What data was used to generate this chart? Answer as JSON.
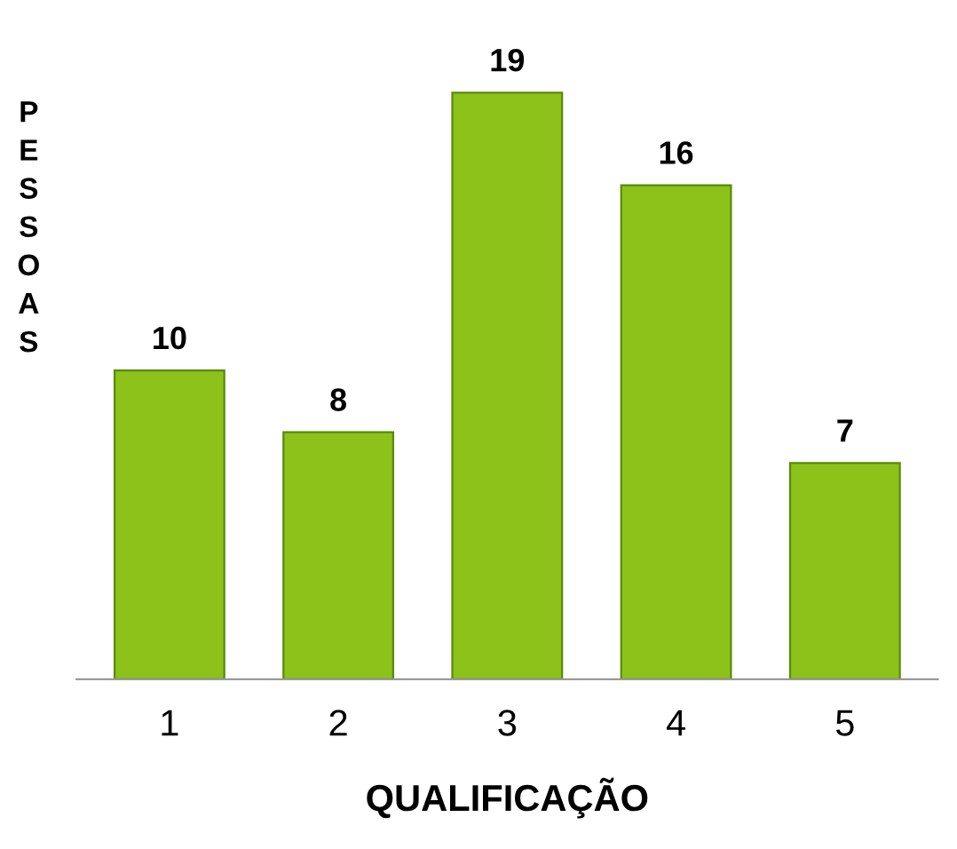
{
  "chart_data": {
    "type": "bar",
    "categories": [
      "1",
      "2",
      "3",
      "4",
      "5"
    ],
    "values": [
      10,
      8,
      19,
      16,
      7
    ],
    "color": "#8cc21a",
    "data_labels": true,
    "xlabel": "QUALIFICAÇÃO",
    "ylabel": "PESSOAS",
    "grid": false,
    "tick_labels": "x"
  }
}
